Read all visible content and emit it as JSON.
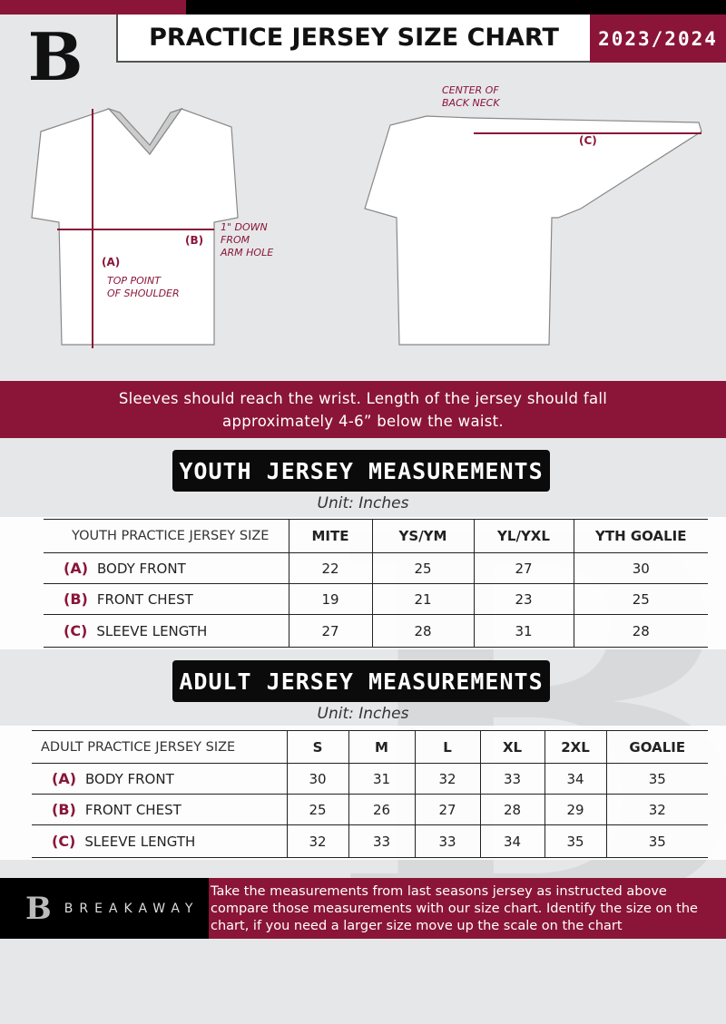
{
  "header": {
    "title": "PRACTICE JERSEY SIZE CHART",
    "season": "2023/2024",
    "logo_letter": "B"
  },
  "diagram": {
    "front_notes": {
      "a": "(A)",
      "a_desc": "TOP POINT\nOF SHOULDER",
      "b": "(B)",
      "b_desc": "1\" DOWN\nFROM\nARM HOLE"
    },
    "back_notes": {
      "c": "(C)",
      "c_desc": "CENTER OF\nBACK NECK"
    },
    "accent": "#8a1538"
  },
  "instructions": "Sleeves should reach the wrist. Length of the jersey should fall approximately 4-6” below the waist.",
  "youth": {
    "title": "YOUTH JERSEY MEASUREMENTS",
    "unit": "Unit: Inches",
    "headers": [
      "YOUTH PRACTICE JERSEY SIZE",
      "MITE",
      "YS/YM",
      "YL/YXL",
      "YTH GOALIE"
    ],
    "rows": [
      {
        "letter": "(A)",
        "label": "BODY FRONT",
        "values": [
          "22",
          "25",
          "27",
          "30"
        ]
      },
      {
        "letter": "(B)",
        "label": "FRONT CHEST",
        "values": [
          "19",
          "21",
          "23",
          "25"
        ]
      },
      {
        "letter": "(C)",
        "label": "SLEEVE LENGTH",
        "values": [
          "27",
          "28",
          "31",
          "28"
        ]
      }
    ]
  },
  "adult": {
    "title": "ADULT JERSEY MEASUREMENTS",
    "unit": "Unit: Inches",
    "headers": [
      "ADULT PRACTICE JERSEY SIZE",
      "S",
      "M",
      "L",
      "XL",
      "2XL",
      "GOALIE"
    ],
    "rows": [
      {
        "letter": "(A)",
        "label": "BODY FRONT",
        "values": [
          "30",
          "31",
          "32",
          "33",
          "34",
          "35"
        ]
      },
      {
        "letter": "(B)",
        "label": "FRONT CHEST",
        "values": [
          "25",
          "26",
          "27",
          "28",
          "29",
          "32"
        ]
      },
      {
        "letter": "(C)",
        "label": "SLEEVE LENGTH",
        "values": [
          "32",
          "33",
          "33",
          "34",
          "35",
          "35"
        ]
      }
    ]
  },
  "footer": {
    "brand": "BREAKAWAY",
    "text": "Take the measurements from last seasons jersey as instructed above compare those measurements  with our size chart. Identify the size on the chart, if you need a larger size move up the scale on the chart"
  },
  "colors": {
    "maroon": "#8a1538",
    "black": "#000000",
    "gray": "#e6e7e8"
  }
}
